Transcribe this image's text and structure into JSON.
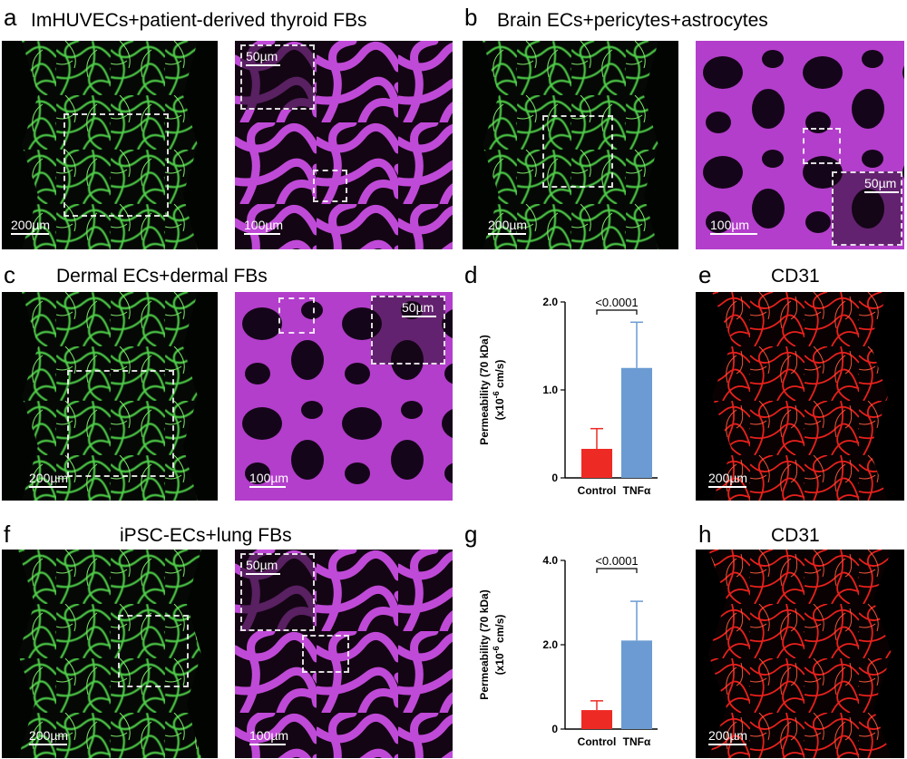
{
  "colors": {
    "green_vessel": "#4fd04a",
    "magenta": "#c04ad8",
    "red_vessel": "#e8201c",
    "bar_control": "#ee2a24",
    "bar_tnfa": "#6b9bd2"
  },
  "panels": {
    "a": {
      "label": "a",
      "title": "ImHUVECs+patient-derived thyroid FBs",
      "scale_main": "200µm",
      "scale_zoom": "100µm",
      "scale_inset": "50µm"
    },
    "b": {
      "label": "b",
      "title": "Brain ECs+pericytes+astrocytes",
      "scale_main": "200µm",
      "scale_zoom": "100µm",
      "scale_inset": "50µm"
    },
    "c": {
      "label": "c",
      "title": "Dermal ECs+dermal FBs",
      "scale_main": "200µm",
      "scale_zoom": "100µm",
      "scale_inset": "50µm"
    },
    "d": {
      "label": "d"
    },
    "e": {
      "label": "e",
      "title": "CD31",
      "scale_main": "200µm"
    },
    "f": {
      "label": "f",
      "title": "iPSC-ECs+lung FBs",
      "scale_main": "200µm",
      "scale_zoom": "100µm",
      "scale_inset": "50µm"
    },
    "g": {
      "label": "g"
    },
    "h": {
      "label": "h",
      "title": "CD31",
      "scale_main": "200µm"
    }
  },
  "chart_data": [
    {
      "panel": "d",
      "type": "bar",
      "categories": [
        "Control",
        "TNFα"
      ],
      "values": [
        0.33,
        1.25
      ],
      "errors": [
        0.23,
        0.52
      ],
      "ylim": [
        0,
        2.0
      ],
      "yticks": [
        "0",
        "1.0",
        "2.0"
      ],
      "ylabel_line1": "Permeability (70 kDa)",
      "ylabel_line2_pre": "(x10",
      "ylabel_line2_sup": "-6",
      "ylabel_line2_post": " cm/s)",
      "significance": "<0.0001",
      "bar_colors": [
        "#ee2a24",
        "#6b9bd2"
      ]
    },
    {
      "panel": "g",
      "type": "bar",
      "categories": [
        "Control",
        "TNFα"
      ],
      "values": [
        0.45,
        2.1
      ],
      "errors": [
        0.22,
        0.93
      ],
      "ylim": [
        0,
        4.0
      ],
      "yticks": [
        "0",
        "2.0",
        "4.0"
      ],
      "ylabel_line1": "Permeability (70 kDa)",
      "ylabel_line2_pre": "(x10",
      "ylabel_line2_sup": "-6",
      "ylabel_line2_post": " cm/s)",
      "significance": "<0.0001",
      "bar_colors": [
        "#ee2a24",
        "#6b9bd2"
      ]
    }
  ]
}
